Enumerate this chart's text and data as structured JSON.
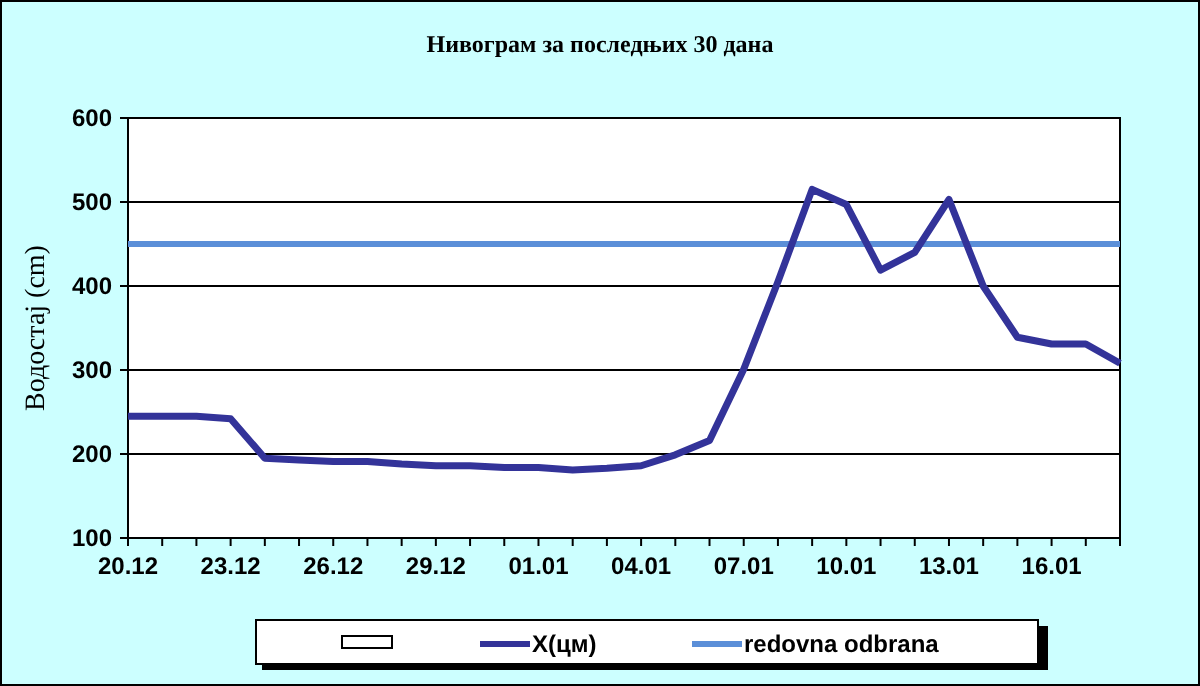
{
  "chart_data": {
    "type": "line",
    "title": "Нивограм за последњих 30 дана",
    "ylabel": "Водостај (cm)",
    "categories": [
      "20.12",
      null,
      null,
      "23.12",
      null,
      null,
      "26.12",
      null,
      null,
      "29.12",
      null,
      null,
      "01.01",
      null,
      null,
      "04.01",
      null,
      null,
      "07.01",
      null,
      null,
      "10.01",
      null,
      null,
      "13.01",
      null,
      null,
      "16.01",
      null,
      null
    ],
    "series": [
      {
        "name": "X(цм)",
        "color": "#333399",
        "values": [
          245,
          245,
          245,
          242,
          195,
          193,
          191,
          191,
          188,
          186,
          186,
          184,
          184,
          181,
          183,
          186,
          199,
          216,
          301,
          405,
          515,
          497,
          419,
          440,
          503,
          400,
          339,
          331,
          331,
          308
        ]
      }
    ],
    "ref_lines": [
      {
        "axis": "y",
        "value": 450,
        "label": "redovna odbrana",
        "color": "#5b8fd8"
      }
    ],
    "ylim": [
      100,
      600
    ],
    "yticks": [
      100,
      200,
      300,
      400,
      500,
      600
    ],
    "grid": "y",
    "legend": "bottom",
    "marker": "none",
    "line_style": "solid"
  }
}
